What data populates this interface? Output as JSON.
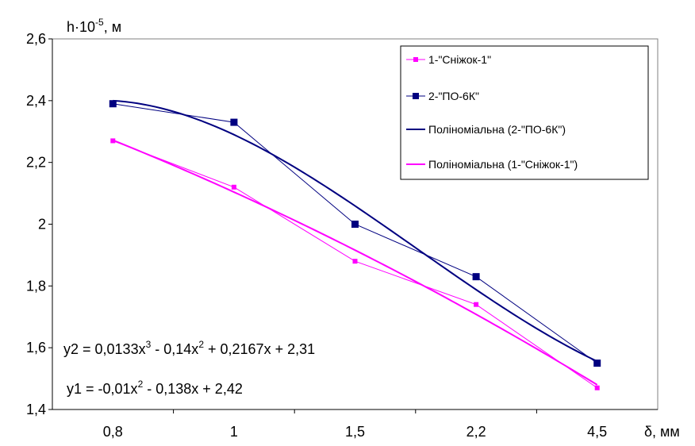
{
  "chart_data": {
    "type": "line",
    "ylabel_base": "h·10",
    "ylabel_exp": "-5",
    "ylabel_unit": ", м",
    "xlabel": "δ, мм",
    "categories": [
      "0,8",
      "1",
      "1,5",
      "2,2",
      "4,5"
    ],
    "ylim": [
      1.4,
      2.6
    ],
    "yticks": [
      1.4,
      1.6,
      1.8,
      2.0,
      2.2,
      2.4,
      2.6
    ],
    "ytick_labels": [
      "1,4",
      "1,6",
      "1,8",
      "2",
      "2,2",
      "2,4",
      "2,6"
    ],
    "grid": false,
    "legend_position": "top-right",
    "series": [
      {
        "name": "1-\"Сніжок-1\"",
        "values": [
          2.27,
          2.12,
          1.88,
          1.74,
          1.47
        ],
        "color": "#ff00ff",
        "marker": "square-small"
      },
      {
        "name": "2-\"ПО-6К\"",
        "values": [
          2.39,
          2.33,
          2.0,
          1.83,
          1.55
        ],
        "color": "#000080",
        "marker": "square"
      }
    ],
    "trendlines": [
      {
        "name": "Поліноміальна (2-\"ПО-6К\")",
        "of": "2-\"ПО-6К\"",
        "coeffs": [
          0.0133,
          -0.14,
          0.2167,
          2.31
        ],
        "color": "#000080"
      },
      {
        "name": "Поліноміальна (1-\"Сніжок-1\")",
        "of": "1-\"Сніжок-1\"",
        "coeffs": [
          0,
          -0.01,
          -0.138,
          2.42
        ],
        "color": "#ff00ff"
      }
    ],
    "equations": {
      "y2": {
        "a": "y2 = 0,0133x",
        "p1": "3",
        "b": " - 0,14x",
        "p2": "2",
        "c": " + 0,2167x + 2,31"
      },
      "y1": {
        "a": "y1 = -0,01x",
        "p1": "2",
        "c": " - 0,138x + 2,42"
      }
    }
  }
}
